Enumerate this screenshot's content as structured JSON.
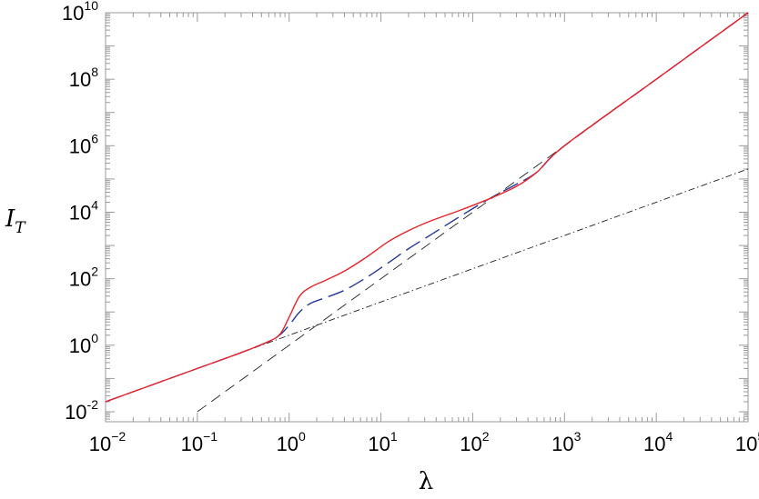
{
  "chart_data": {
    "type": "line",
    "title": "",
    "xlabel": "λ",
    "ylabel": "I",
    "ylabel_subscript": "T",
    "xscale": "log",
    "yscale": "log",
    "xlim": [
      0.01,
      100000
    ],
    "ylim": [
      0.005,
      10000000000
    ],
    "x_ticks": [
      {
        "value": 0.01,
        "base": "10",
        "exp": "−2"
      },
      {
        "value": 0.1,
        "base": "10",
        "exp": "−1"
      },
      {
        "value": 1,
        "base": "10",
        "exp": "0"
      },
      {
        "value": 10,
        "base": "10",
        "exp": "1"
      },
      {
        "value": 100,
        "base": "10",
        "exp": "2"
      },
      {
        "value": 1000,
        "base": "10",
        "exp": "3"
      },
      {
        "value": 10000,
        "base": "10",
        "exp": "4"
      },
      {
        "value": 100000,
        "base": "10",
        "exp": "5"
      }
    ],
    "y_ticks": [
      {
        "value": 0.01,
        "base": "10",
        "exp": "-2"
      },
      {
        "value": 1,
        "base": "10",
        "exp": "0"
      },
      {
        "value": 100,
        "base": "10",
        "exp": "2"
      },
      {
        "value": 10000,
        "base": "10",
        "exp": "4"
      },
      {
        "value": 1000000,
        "base": "10",
        "exp": "6"
      },
      {
        "value": 100000000,
        "base": "10",
        "exp": "8"
      },
      {
        "value": 10000000000,
        "base": "10",
        "exp": "10"
      }
    ],
    "grid": false,
    "legend": "none",
    "series": [
      {
        "style": "solid",
        "color": "#e8232b",
        "points": [
          [
            0.01,
            0.02
          ],
          [
            0.1,
            0.2
          ],
          [
            0.3,
            0.6
          ],
          [
            0.6,
            1.3
          ],
          [
            0.8,
            2.2
          ],
          [
            1.0,
            7
          ],
          [
            1.3,
            30
          ],
          [
            1.7,
            55
          ],
          [
            2.5,
            90
          ],
          [
            4,
            170
          ],
          [
            7,
            450
          ],
          [
            12,
            1300
          ],
          [
            20,
            2800
          ],
          [
            35,
            5500
          ],
          [
            70,
            11000
          ],
          [
            150,
            25000
          ],
          [
            300,
            60000
          ],
          [
            500,
            160000
          ],
          [
            1000,
            1000000
          ],
          [
            10000,
            100000000
          ],
          [
            100000,
            10000000000
          ]
        ]
      },
      {
        "style": "long-dash",
        "color": "#26389a",
        "points": [
          [
            0.01,
            0.02
          ],
          [
            0.1,
            0.2
          ],
          [
            0.3,
            0.6
          ],
          [
            0.6,
            1.3
          ],
          [
            0.8,
            2.1
          ],
          [
            1.0,
            4
          ],
          [
            1.3,
            10
          ],
          [
            1.7,
            18
          ],
          [
            2.5,
            27
          ],
          [
            4,
            45
          ],
          [
            7,
            110
          ],
          [
            12,
            300
          ],
          [
            20,
            800
          ],
          [
            35,
            2100
          ],
          [
            70,
            7000
          ],
          [
            150,
            25000
          ],
          [
            300,
            70000
          ],
          [
            500,
            160000
          ],
          [
            1000,
            1000000
          ],
          [
            10000,
            100000000
          ],
          [
            100000,
            10000000000
          ]
        ]
      },
      {
        "style": "dash",
        "color": "#222222",
        "points": [
          [
            0.1,
            0.01
          ],
          [
            100000,
            10000000000
          ]
        ]
      },
      {
        "style": "dash-dot",
        "color": "#222222",
        "points": [
          [
            0.01,
            0.02
          ],
          [
            100000,
            200000
          ]
        ]
      }
    ]
  },
  "colors": {
    "red_series": "#e8232b",
    "blue_series": "#26389a",
    "axis": "#9a9a9a"
  }
}
